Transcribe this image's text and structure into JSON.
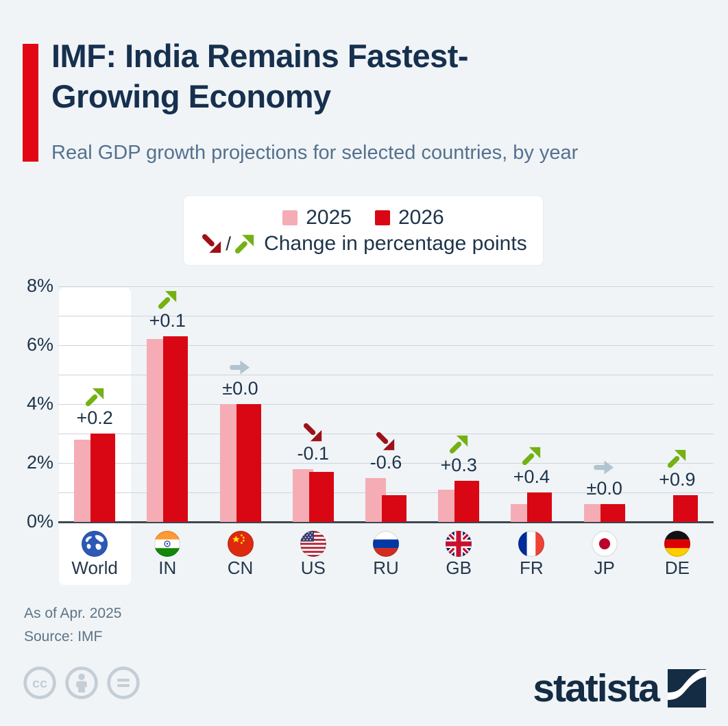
{
  "header": {
    "title_line1": "IMF: India Remains Fastest-",
    "title_line2": "Growing Economy",
    "subtitle": "Real GDP growth projections for selected countries, by year"
  },
  "legend": {
    "series": [
      {
        "label": "2025",
        "color": "#f5acb4"
      },
      {
        "label": "2026",
        "color": "#d90713"
      }
    ],
    "separator": "/",
    "change_label": "Change in percentage points"
  },
  "chart_data": {
    "type": "bar",
    "title": "Real GDP growth projections for selected countries, by year",
    "categories": [
      "World",
      "IN",
      "CN",
      "US",
      "RU",
      "GB",
      "FR",
      "JP",
      "DE"
    ],
    "series": [
      {
        "name": "2025",
        "values": [
          2.8,
          6.2,
          4.0,
          1.8,
          1.5,
          1.1,
          0.6,
          0.6,
          0.0
        ]
      },
      {
        "name": "2026",
        "values": [
          3.0,
          6.3,
          4.0,
          1.7,
          0.9,
          1.4,
          1.0,
          0.6,
          0.9
        ]
      }
    ],
    "changes": [
      "+0.2",
      "+0.1",
      "±0.0",
      "-0.1",
      "-0.6",
      "+0.3",
      "+0.4",
      "±0.0",
      "+0.9"
    ],
    "change_direction": [
      "up",
      "up",
      "flat",
      "down",
      "down",
      "up",
      "up",
      "flat",
      "up"
    ],
    "flags": [
      "world",
      "in",
      "cn",
      "us",
      "ru",
      "gb",
      "fr",
      "jp",
      "de"
    ],
    "highlighted_category": "World",
    "y_ticks": [
      {
        "value": 0,
        "label": "0%"
      },
      {
        "value": 2,
        "label": "2%"
      },
      {
        "value": 4,
        "label": "4%"
      },
      {
        "value": 6,
        "label": "6%"
      },
      {
        "value": 8,
        "label": "8%"
      }
    ],
    "ylim": [
      0,
      8
    ],
    "grid": true,
    "legend_position": "top"
  },
  "footer": {
    "as_of": "As of Apr. 2025",
    "source": "Source: IMF",
    "brand": "statista"
  },
  "colors": {
    "background": "#f0f4f7",
    "accent_red": "#e30613",
    "bar_2025": "#f5acb4",
    "bar_2026": "#d90713",
    "arrow_up": "#74b113",
    "arrow_down": "#9d1118",
    "arrow_flat": "#b1c4cf",
    "title_navy": "#16304e",
    "subtitle_gray": "#54718d",
    "gridline": "#ccd5dc",
    "baseline": "#3d4751",
    "cc_icon": "#c5ced6"
  }
}
